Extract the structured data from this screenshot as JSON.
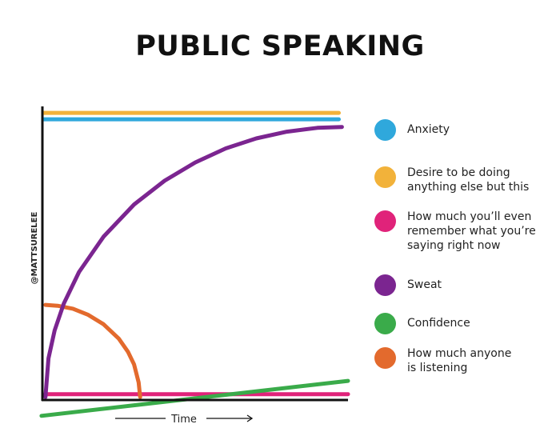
{
  "title": "PUBLIC SPEAKING",
  "watermark": "@MATTSURELEE",
  "chart_data": {
    "type": "line",
    "title": "PUBLIC SPEAKING",
    "xlabel": "Time",
    "ylabel": "",
    "xlim": [
      0,
      100
    ],
    "ylim": [
      0,
      100
    ],
    "grid": false,
    "ticks": false,
    "legend": "right",
    "series": [
      {
        "name": "Anxiety",
        "color": "#2fa8dc",
        "points": [
          [
            0.5,
            95.6
          ],
          [
            97,
            95.6
          ]
        ]
      },
      {
        "name": "Desire to be doing\nanything else but this",
        "color": "#f2b23a",
        "points": [
          [
            0.5,
            97.8
          ],
          [
            97,
            97.8
          ]
        ]
      },
      {
        "name": "How much you’ll even\nremember what you’re\nsaying right now",
        "color": "#e0237a",
        "points": [
          [
            1,
            2
          ],
          [
            100,
            2
          ]
        ]
      },
      {
        "name": "Sweat",
        "color": "#7b2590",
        "points": [
          [
            1,
            1
          ],
          [
            2,
            14.2
          ],
          [
            4,
            23.7
          ],
          [
            7,
            32.8
          ],
          [
            12,
            43.6
          ],
          [
            20,
            55.6
          ],
          [
            30,
            66.6
          ],
          [
            40,
            74.7
          ],
          [
            50,
            80.9
          ],
          [
            60,
            85.7
          ],
          [
            70,
            89.1
          ],
          [
            80,
            91.4
          ],
          [
            90,
            92.7
          ],
          [
            98,
            93
          ]
        ]
      },
      {
        "name": "Confidence",
        "color": "#3aab4a",
        "points": [
          [
            -0.3,
            -5.4
          ],
          [
            100,
            6.5
          ]
        ]
      },
      {
        "name": "How much anyone\nis listening",
        "color": "#e36a2d",
        "points": [
          [
            1,
            32.4
          ],
          [
            5,
            32.1
          ],
          [
            10,
            31.1
          ],
          [
            15,
            29.0
          ],
          [
            20,
            25.8
          ],
          [
            25,
            20.9
          ],
          [
            28,
            16.4
          ],
          [
            30,
            12.1
          ],
          [
            31.5,
            6
          ],
          [
            32,
            1
          ]
        ]
      }
    ]
  }
}
